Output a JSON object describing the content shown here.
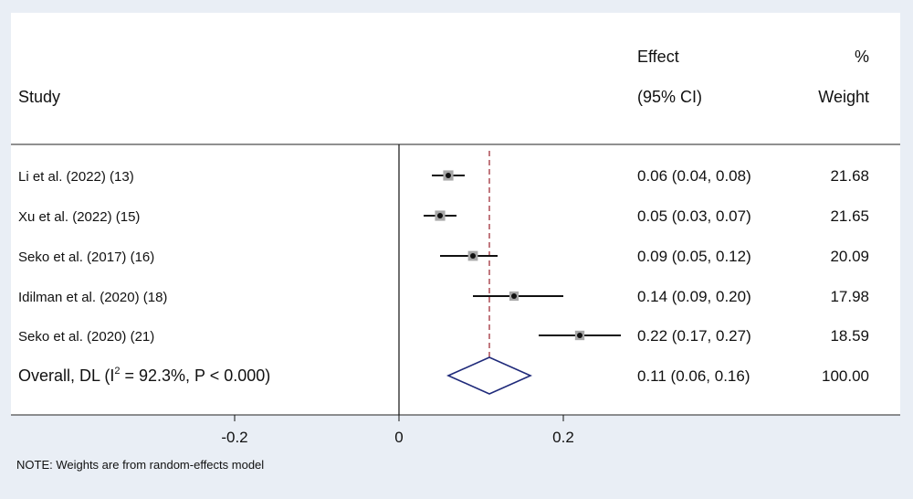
{
  "headers": {
    "study": "Study",
    "effect_line1": "Effect",
    "effect_line2": "(95% CI)",
    "weight_line1": "%",
    "weight_line2": "Weight"
  },
  "note": "NOTE: Weights are from random-effects model",
  "overall_label": "Overall, DL (I",
  "overall_sup": "2",
  "overall_label_rest": " = 92.3%, P < 0.000)",
  "overall_ci_text": "0.11 (0.06, 0.16)",
  "overall_weight_text": "100.00",
  "colors": {
    "background": "#e9eef5",
    "panel": "#ffffff",
    "reference_line": "#a0303a",
    "diamond": "#1f2a7a",
    "box": "#a8a8a8"
  },
  "chart_data": {
    "type": "forest",
    "xaxis": {
      "ticks": [
        -0.2,
        0,
        0.2
      ],
      "tick_labels": [
        "-0.2",
        "0",
        "0.2"
      ],
      "range": [
        -0.44,
        0.28
      ]
    },
    "studies": [
      {
        "label": "Li et al. (2022) (13)",
        "effect": 0.06,
        "lower": 0.04,
        "upper": 0.08,
        "ci_text": "0.06 (0.04, 0.08)",
        "weight": 21.68,
        "weight_text": "21.68"
      },
      {
        "label": "Xu et al. (2022) (15)",
        "effect": 0.05,
        "lower": 0.03,
        "upper": 0.07,
        "ci_text": "0.05 (0.03, 0.07)",
        "weight": 21.65,
        "weight_text": "21.65"
      },
      {
        "label": "Seko et al. (2017) (16)",
        "effect": 0.09,
        "lower": 0.05,
        "upper": 0.12,
        "ci_text": "0.09 (0.05, 0.12)",
        "weight": 20.09,
        "weight_text": "20.09"
      },
      {
        "label": "Idilman et al.  (2020) (18)",
        "effect": 0.14,
        "lower": 0.09,
        "upper": 0.2,
        "ci_text": "0.14 (0.09, 0.20)",
        "weight": 17.98,
        "weight_text": "17.98"
      },
      {
        "label": "Seko et al. (2020) (21)",
        "effect": 0.22,
        "lower": 0.17,
        "upper": 0.27,
        "ci_text": "0.22 (0.17, 0.27)",
        "weight": 18.59,
        "weight_text": "18.59"
      }
    ],
    "overall": {
      "effect": 0.11,
      "lower": 0.06,
      "upper": 0.16,
      "weight": 100.0,
      "i2": "92.3%",
      "p": "< 0.000"
    }
  }
}
